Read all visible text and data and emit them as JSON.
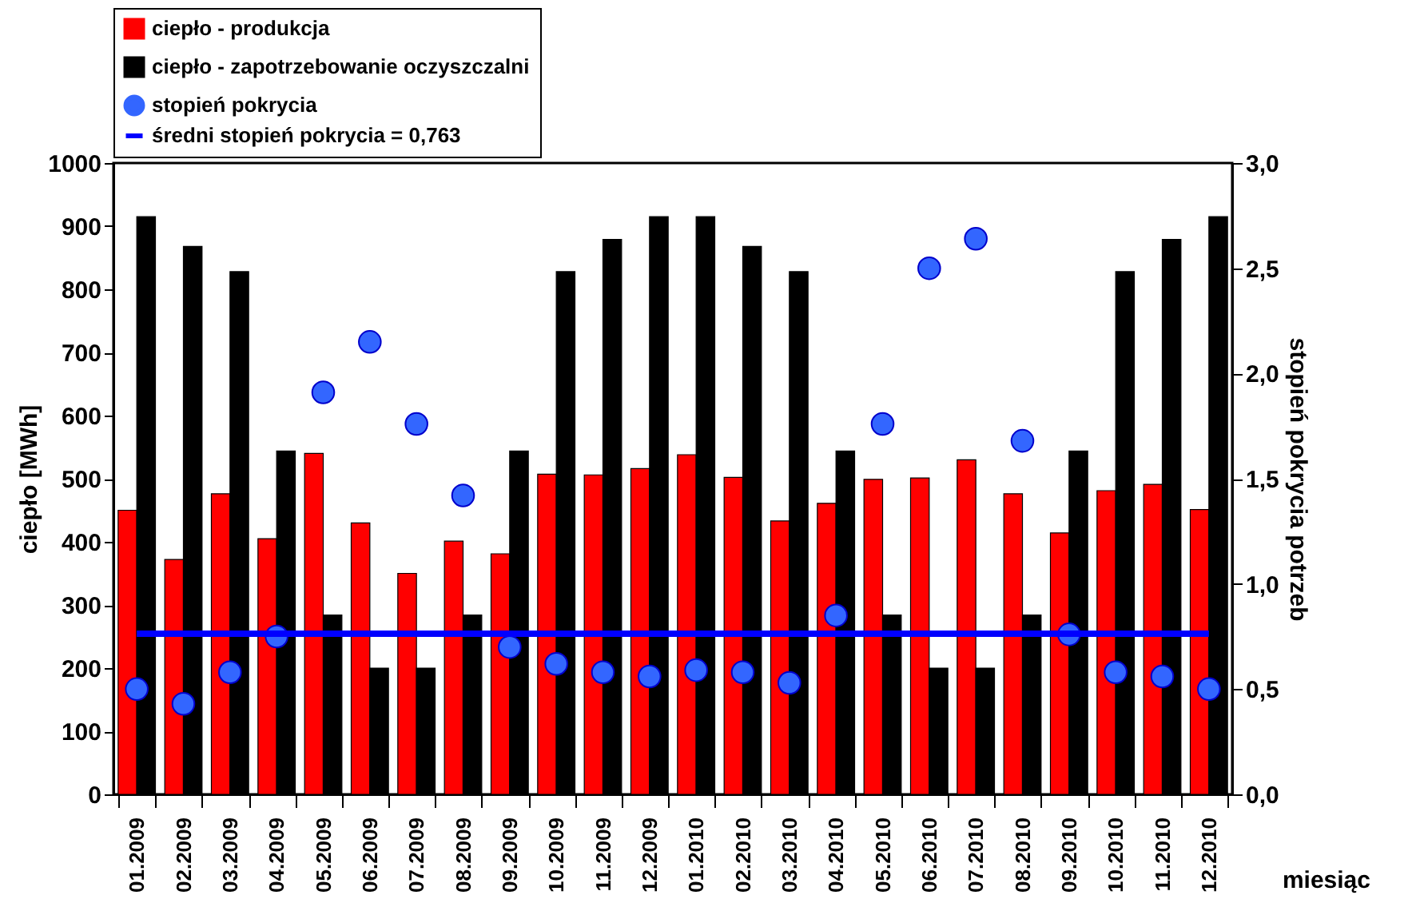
{
  "chart_data": {
    "type": "bar",
    "xlabel": "miesiąc",
    "ylabel": "ciepło [MWh]",
    "y2label": "stopień pokrycia potrzeb",
    "categories": [
      "01.2009",
      "02.2009",
      "03.2009",
      "04.2009",
      "05.2009",
      "06.2009",
      "07.2009",
      "08.2009",
      "09.2009",
      "10.2009",
      "11.2009",
      "12.2009",
      "01.2010",
      "02.2010",
      "03.2010",
      "04.2010",
      "05.2010",
      "06.2010",
      "07.2010",
      "08.2010",
      "09.2010",
      "10.2010",
      "11.2010",
      "12.2010"
    ],
    "series": [
      {
        "name": "ciepło - produkcja",
        "color": "#ff0000",
        "values": [
          450,
          372,
          476,
          405,
          540,
          430,
          350,
          401,
          381,
          507,
          506,
          516,
          538,
          502,
          433,
          461,
          499,
          501,
          530,
          476,
          414,
          481,
          491,
          451
        ]
      },
      {
        "name": "ciepło - zapotrzebowanie oczyszczalni",
        "color": "#000000",
        "values": [
          915,
          868,
          828,
          544,
          284,
          200,
          200,
          284,
          544,
          828,
          879,
          915,
          915,
          868,
          828,
          544,
          284,
          200,
          200,
          284,
          544,
          828,
          879,
          915
        ]
      },
      {
        "name": "stopień pokrycia",
        "type": "scatter",
        "axis": "y2",
        "marker": "circle",
        "color": "#3366ff",
        "values": [
          0.5,
          0.43,
          0.58,
          0.75,
          1.91,
          2.15,
          1.76,
          1.42,
          0.7,
          0.62,
          0.58,
          0.56,
          0.59,
          0.58,
          0.53,
          0.85,
          1.76,
          2.5,
          2.64,
          1.68,
          0.76,
          0.58,
          0.56,
          0.5
        ]
      },
      {
        "name": "średni stopień pokrycia = 0,763",
        "type": "line",
        "axis": "y2",
        "color": "#0000ff",
        "values": [
          0.763,
          0.763,
          0.763,
          0.763,
          0.763,
          0.763,
          0.763,
          0.763,
          0.763,
          0.763,
          0.763,
          0.763,
          0.763,
          0.763,
          0.763,
          0.763,
          0.763,
          0.763,
          0.763,
          0.763,
          0.763,
          0.763,
          0.763,
          0.763
        ]
      }
    ],
    "ylim": [
      0,
      1000
    ],
    "yticks": [
      0,
      100,
      200,
      300,
      400,
      500,
      600,
      700,
      800,
      900,
      1000
    ],
    "y2lim": [
      0,
      3
    ],
    "y2ticks": [
      {
        "value": 0,
        "label": "0,0"
      },
      {
        "value": 0.5,
        "label": "0,5"
      },
      {
        "value": 1,
        "label": "1,0"
      },
      {
        "value": 1.5,
        "label": "1,5"
      },
      {
        "value": 2,
        "label": "2,0"
      },
      {
        "value": 2.5,
        "label": "2,5"
      },
      {
        "value": 3,
        "label": "3,0"
      }
    ],
    "grid": false,
    "legend": "top"
  }
}
